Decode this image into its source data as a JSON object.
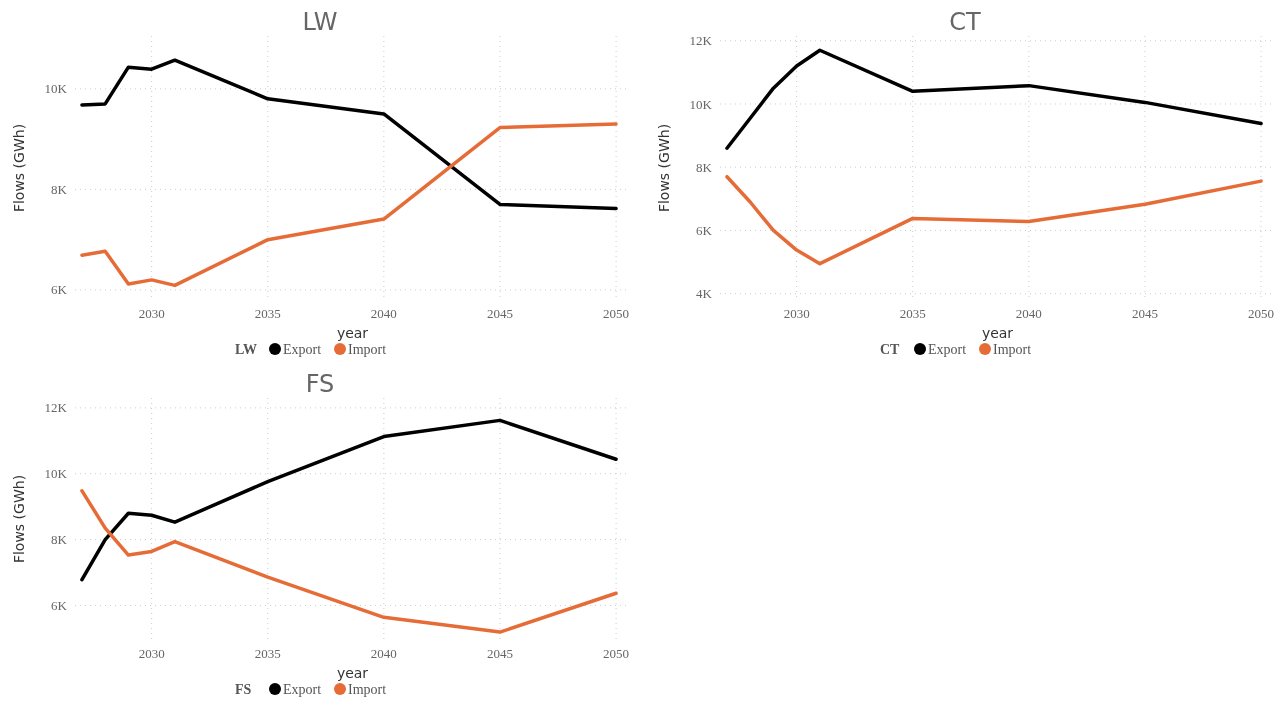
{
  "chart_data": [
    {
      "type": "line",
      "title": "LW",
      "xlabel": "year",
      "ylabel": "Flows (GWh)",
      "legend_title": "LW",
      "legend": "bottom",
      "grid": true,
      "x": [
        2027,
        2028,
        2029,
        2030,
        2031,
        2035,
        2040,
        2045,
        2050
      ],
      "xlim": [
        2026.7,
        2050.6
      ],
      "xticks": [
        2030,
        2035,
        2040,
        2045,
        2050
      ],
      "ylim": [
        5800,
        11050
      ],
      "yticks": [
        {
          "value": 6000,
          "label": "6K"
        },
        {
          "value": 8000,
          "label": "8K"
        },
        {
          "value": 10000,
          "label": "10K"
        }
      ],
      "series": [
        {
          "name": "Export",
          "color": "#000000",
          "values": [
            9680,
            9700,
            10430,
            10390,
            10570,
            9800,
            9500,
            7700,
            7620
          ]
        },
        {
          "name": "Import",
          "color": "#e66c37",
          "values": [
            6690,
            6770,
            6120,
            6200,
            6090,
            7000,
            7410,
            9230,
            9300
          ]
        }
      ]
    },
    {
      "type": "line",
      "title": "CT",
      "xlabel": "year",
      "ylabel": "Flows (GWh)",
      "legend_title": "CT",
      "legend": "bottom",
      "grid": true,
      "x": [
        2027,
        2028,
        2029,
        2030,
        2031,
        2035,
        2040,
        2045,
        2050
      ],
      "xlim": [
        2026.7,
        2050.6
      ],
      "xticks": [
        2030,
        2035,
        2040,
        2045,
        2050
      ],
      "ylim": [
        3800,
        12150
      ],
      "yticks": [
        {
          "value": 4000,
          "label": "4K"
        },
        {
          "value": 6000,
          "label": "6K"
        },
        {
          "value": 8000,
          "label": "8K"
        },
        {
          "value": 10000,
          "label": "10K"
        },
        {
          "value": 12000,
          "label": "12K"
        }
      ],
      "series": [
        {
          "name": "Export",
          "color": "#000000",
          "values": [
            8600,
            9550,
            10500,
            11200,
            11700,
            10400,
            10580,
            10050,
            9380
          ]
        },
        {
          "name": "Import",
          "color": "#e66c37",
          "values": [
            7700,
            6900,
            6000,
            5380,
            4950,
            6380,
            6280,
            6830,
            7560
          ]
        }
      ]
    },
    {
      "type": "line",
      "title": "FS",
      "xlabel": "year",
      "ylabel": "Flows (GWh)",
      "legend_title": "FS",
      "legend": "bottom",
      "grid": true,
      "x": [
        2027,
        2028,
        2029,
        2030,
        2031,
        2035,
        2040,
        2045,
        2050
      ],
      "xlim": [
        2026.7,
        2050.6
      ],
      "xticks": [
        2030,
        2035,
        2040,
        2045,
        2050
      ],
      "ylim": [
        4950,
        12300
      ],
      "yticks": [
        {
          "value": 6000,
          "label": "6K"
        },
        {
          "value": 8000,
          "label": "8K"
        },
        {
          "value": 10000,
          "label": "10K"
        },
        {
          "value": 12000,
          "label": "12K"
        }
      ],
      "series": [
        {
          "name": "Export",
          "color": "#000000",
          "values": [
            6780,
            8000,
            8800,
            8740,
            8530,
            9760,
            11130,
            11620,
            10440
          ]
        },
        {
          "name": "Import",
          "color": "#e66c37",
          "values": [
            9480,
            8350,
            7530,
            7640,
            7940,
            6860,
            5640,
            5190,
            6370
          ]
        }
      ]
    }
  ]
}
